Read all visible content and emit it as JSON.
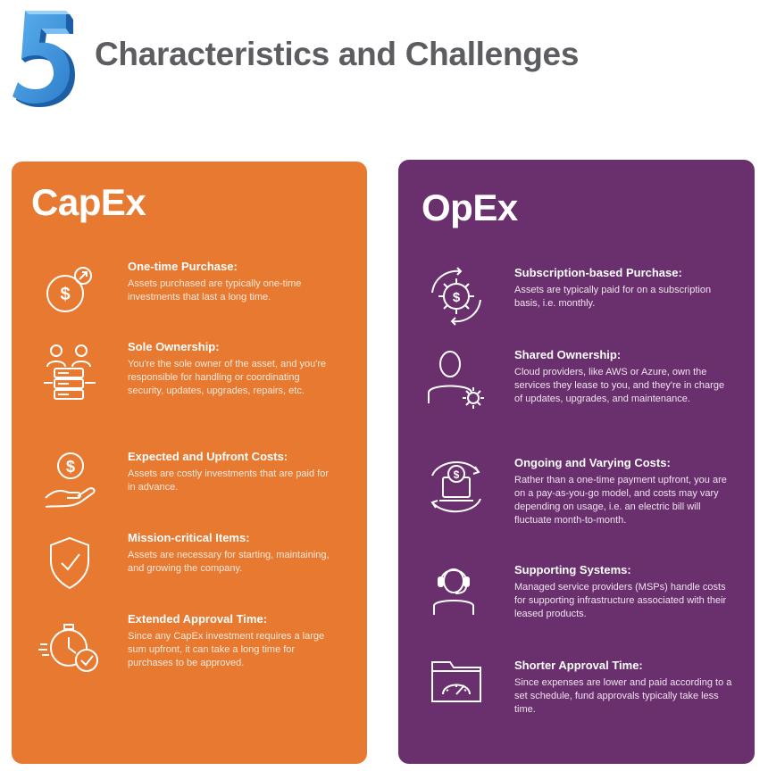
{
  "header": {
    "number": "5",
    "title": "Characteristics and Challenges"
  },
  "colors": {
    "capex_bg": "#e87930",
    "opex_bg": "#6a2f6d",
    "number_blue": "#3b8fd6",
    "title_gray": "#5b5d61"
  },
  "capex": {
    "title": "CapEx",
    "items": [
      {
        "title": "One-time Purchase:",
        "desc": "Assets purchased are typically one-time investments that last a long time.",
        "icon": "dollar-coin-arrow-icon"
      },
      {
        "title": "Sole Ownership:",
        "desc": "You're the sole owner of the asset, and you're responsible for handling or coordinating security, updates, upgrades, repairs, etc.",
        "icon": "people-server-icon"
      },
      {
        "title": "Expected and Upfront Costs:",
        "desc": "Assets are costly investments that are paid for in advance.",
        "icon": "hand-coin-icon"
      },
      {
        "title": "Mission-critical Items:",
        "desc": "Assets are necessary for starting, maintaining, and growing the company.",
        "icon": "shield-check-icon"
      },
      {
        "title": "Extended Approval Time:",
        "desc": "Since any CapEx investment requires a large sum upfront, it can take a long time for purchases to be approved.",
        "icon": "stopwatch-check-icon"
      }
    ]
  },
  "opex": {
    "title": "OpEx",
    "items": [
      {
        "title": "Subscription-based Purchase:",
        "desc": "Assets are typically paid for on a subscription basis, i.e. monthly.",
        "icon": "gear-dollar-cycle-icon"
      },
      {
        "title": "Shared Ownership:",
        "desc": "Cloud providers, like AWS or Azure, own the services they lease to you, and they're in charge of updates, upgrades, and maintenance.",
        "icon": "person-gear-icon"
      },
      {
        "title": "Ongoing and Varying Costs:",
        "desc": "Rather than a one-time payment upfront, you are on a pay-as-you-go model, and costs may vary depending on usage, i.e. an electric  bill will fluctuate month-to-month.",
        "icon": "laptop-dollar-cycle-icon"
      },
      {
        "title": "Supporting Systems:",
        "desc": "Managed service providers (MSPs) handle costs for supporting infrastructure associated with their leased products.",
        "icon": "headset-support-icon"
      },
      {
        "title": "Shorter Approval Time:",
        "desc": "Since expenses are lower and paid according to a set schedule, fund approvals typically take less time.",
        "icon": "folder-gauge-icon"
      }
    ]
  }
}
